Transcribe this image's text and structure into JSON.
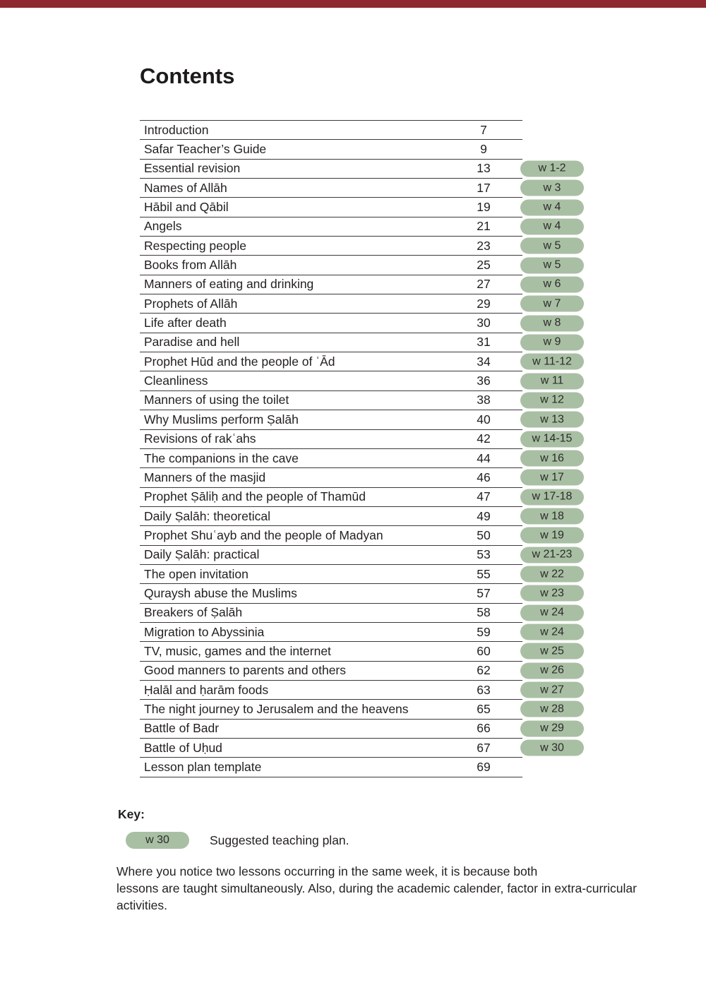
{
  "page": {
    "title": "Contents"
  },
  "colors": {
    "top_accent_bar": "#8e2a30",
    "week_badge_background": "#a9bfa3",
    "text": "#231f20",
    "rule_lines": "#3a3a3a"
  },
  "toc": {
    "rows": [
      {
        "title": "Introduction",
        "page": "7",
        "week": ""
      },
      {
        "title": "Safar Teacher’s Guide",
        "page": "9",
        "week": ""
      },
      {
        "title": "Essential revision",
        "page": "13",
        "week": "w 1-2"
      },
      {
        "title": "Names of Allāh",
        "page": "17",
        "week": "w 3"
      },
      {
        "title": "Hābil and Qābil",
        "page": "19",
        "week": "w 4"
      },
      {
        "title": "Angels",
        "page": "21",
        "week": "w 4"
      },
      {
        "title": "Respecting people",
        "page": "23",
        "week": "w 5"
      },
      {
        "title": "Books from Allāh",
        "page": "25",
        "week": "w 5"
      },
      {
        "title": "Manners of eating and drinking",
        "page": "27",
        "week": "w 6"
      },
      {
        "title": "Prophets of Allāh",
        "page": "29",
        "week": "w 7"
      },
      {
        "title": "Life after death",
        "page": "30",
        "week": "w 8"
      },
      {
        "title": "Paradise and hell",
        "page": "31",
        "week": "w 9"
      },
      {
        "title": "Prophet Hūd and the people of ʿĀd",
        "page": "34",
        "week": "w 11-12"
      },
      {
        "title": "Cleanliness",
        "page": "36",
        "week": "w 11"
      },
      {
        "title": "Manners of using the toilet",
        "page": "38",
        "week": "w 12"
      },
      {
        "title": "Why Muslims perform Ṣalāh",
        "page": "40",
        "week": "w 13"
      },
      {
        "title": "Revisions of rakʿahs",
        "page": "42",
        "week": "w 14-15"
      },
      {
        "title": "The companions in the cave",
        "page": "44",
        "week": "w 16"
      },
      {
        "title": "Manners of the masjid",
        "page": "46",
        "week": "w 17"
      },
      {
        "title": "Prophet Ṣāliḥ and the people of Thamūd",
        "page": "47",
        "week": "w 17-18"
      },
      {
        "title": "Daily Ṣalāh: theoretical",
        "page": "49",
        "week": "w 18"
      },
      {
        "title": "Prophet Shuʿayb and the people of Madyan",
        "page": "50",
        "week": "w 19"
      },
      {
        "title": "Daily Ṣalāh: practical",
        "page": "53",
        "week": "w 21-23"
      },
      {
        "title": "The open invitation",
        "page": "55",
        "week": "w 22"
      },
      {
        "title": "Quraysh abuse the Muslims",
        "page": "57",
        "week": "w 23"
      },
      {
        "title": "Breakers of Ṣalāh",
        "page": "58",
        "week": "w 24"
      },
      {
        "title": "Migration to Abyssinia",
        "page": "59",
        "week": "w 24"
      },
      {
        "title": "TV, music, games and the internet",
        "page": "60",
        "week": "w 25"
      },
      {
        "title": "Good manners to parents and others",
        "page": "62",
        "week": "w 26"
      },
      {
        "title": "Ḥalāl and ḥarām foods",
        "page": "63",
        "week": "w 27"
      },
      {
        "title": "The night journey to Jerusalem and the heavens",
        "page": "65",
        "week": "w 28"
      },
      {
        "title": "Battle of Badr",
        "page": "66",
        "week": "w 29"
      },
      {
        "title": "Battle of Uḥud",
        "page": "67",
        "week": "w 30"
      },
      {
        "title": "Lesson plan template",
        "page": "69",
        "week": ""
      }
    ]
  },
  "key": {
    "label": "Key:",
    "badge": "w 30",
    "description": "Suggested teaching plan."
  },
  "note": {
    "lines": [
      "Where you notice two lessons occurring in the same week, it is because both",
      "lessons are taught simultaneously. Also, during the academic calender, factor in extra-curricular",
      "activities."
    ]
  }
}
